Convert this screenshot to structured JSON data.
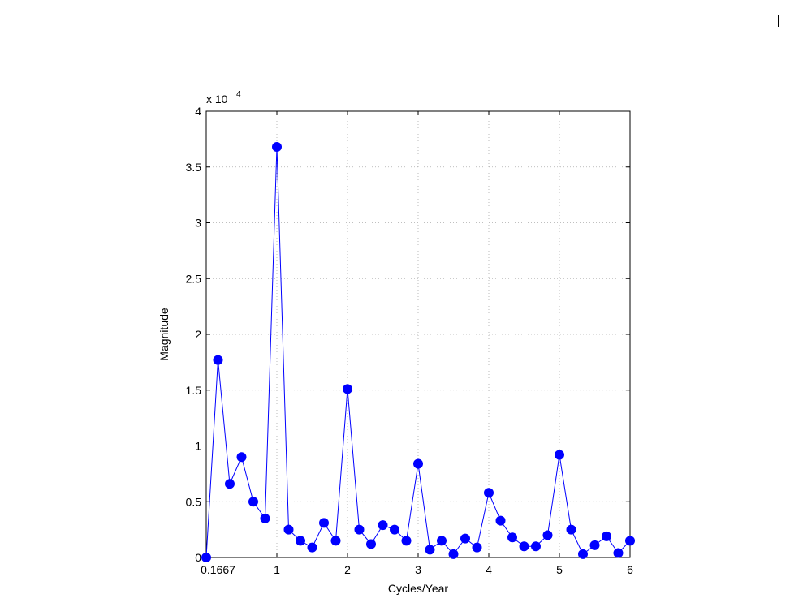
{
  "chart_data": {
    "type": "line",
    "x_label": "Cycles/Year",
    "y_label": "Magnitude",
    "y_multiplier": "x 10",
    "y_exponent": "4",
    "x": [
      0,
      0.1667,
      0.3333,
      0.5,
      0.6667,
      0.8333,
      1,
      1.1667,
      1.3333,
      1.5,
      1.6667,
      1.8333,
      2,
      2.1667,
      2.3333,
      2.5,
      2.6667,
      2.8333,
      3,
      3.1667,
      3.3333,
      3.5,
      3.6667,
      3.8333,
      4,
      4.1667,
      4.3333,
      4.5,
      4.6667,
      4.8333,
      5,
      5.1667,
      5.3333,
      5.5,
      5.6667,
      5.8333,
      6
    ],
    "series": [
      {
        "color": "#0000ff",
        "values": [
          0,
          1.77,
          0.66,
          0.9,
          0.5,
          0.35,
          3.68,
          0.25,
          0.15,
          0.09,
          0.31,
          0.15,
          1.51,
          0.25,
          0.12,
          0.29,
          0.25,
          0.15,
          0.84,
          0.07,
          0.15,
          0.03,
          0.17,
          0.09,
          0.58,
          0.33,
          0.18,
          0.1,
          0.1,
          0.2,
          0.92,
          0.25,
          0.03,
          0.11,
          0.19,
          0.04,
          0.15
        ]
      }
    ],
    "xlim": [
      0,
      6
    ],
    "ylim": [
      0,
      4
    ],
    "xticks": [
      {
        "value": 0.1667,
        "label": "0.1667"
      },
      1,
      2,
      3,
      4,
      5,
      6
    ],
    "yticks": [
      0,
      0.5,
      1,
      1.5,
      2,
      2.5,
      3,
      3.5,
      4
    ],
    "grid": true
  }
}
